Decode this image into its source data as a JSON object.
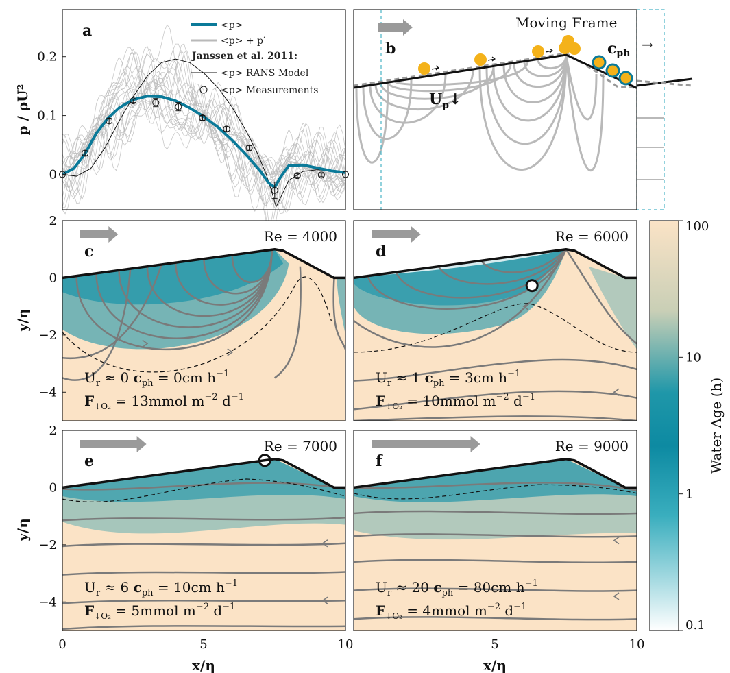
{
  "figure": {
    "colors": {
      "accent": "#0b7a99",
      "gray_line": "#b9b9b9",
      "stream": "#7a7a7a",
      "sand": "#fbe3c6",
      "teal_deep": "#0a8ea7",
      "orange": "#f4b21a"
    }
  },
  "chart_data": [
    {
      "id": "a",
      "type": "line",
      "panel_label": "a",
      "ylabel": "p / ρU²",
      "xlim": [
        0,
        10
      ],
      "ylim": [
        -0.06,
        0.28
      ],
      "yticks": [
        "0",
        "0.1",
        "0.2"
      ],
      "ytick_values": [
        0,
        0.1,
        0.2
      ],
      "legend": {
        "mean": "<p>",
        "fluct": "<p> + p′",
        "group_title": "Janssen et al. 2011:",
        "rans": "<p> RANS Model",
        "meas": "<p> Measurements"
      },
      "series": [
        {
          "name": "<p>",
          "x": [
            0,
            0.4,
            0.8,
            1.2,
            1.6,
            2.0,
            2.5,
            3.0,
            3.5,
            4.0,
            4.5,
            5.0,
            5.5,
            6.0,
            6.5,
            7.0,
            7.3,
            7.5,
            7.7,
            8.0,
            8.5,
            9.0,
            9.5,
            10.0
          ],
          "y": [
            0.0,
            0.01,
            0.035,
            0.07,
            0.095,
            0.113,
            0.127,
            0.133,
            0.132,
            0.125,
            0.113,
            0.098,
            0.08,
            0.058,
            0.033,
            0.005,
            -0.015,
            -0.022,
            -0.005,
            0.015,
            0.016,
            0.011,
            0.006,
            0.003
          ]
        },
        {
          "name": "<p> RANS Model",
          "x": [
            0,
            0.5,
            1.0,
            1.5,
            2.0,
            2.5,
            3.0,
            3.5,
            4.0,
            4.5,
            5.0,
            5.5,
            6.0,
            6.5,
            6.9,
            7.2,
            7.4,
            7.55,
            7.7,
            8.0,
            8.5,
            9.0,
            9.5,
            10.0
          ],
          "y": [
            0.0,
            -0.003,
            0.01,
            0.045,
            0.09,
            0.132,
            0.167,
            0.19,
            0.196,
            0.19,
            0.172,
            0.147,
            0.114,
            0.073,
            0.035,
            0.0,
            -0.03,
            -0.055,
            -0.04,
            -0.01,
            0.005,
            0.008,
            0.006,
            0.004
          ]
        },
        {
          "name": "<p> Measurements",
          "x": [
            0,
            0.8,
            1.65,
            2.5,
            3.3,
            4.1,
            4.95,
            5.8,
            6.6,
            7.5,
            8.3,
            9.15,
            10.0
          ],
          "y": [
            0.0,
            0.036,
            0.091,
            0.125,
            0.122,
            0.115,
            0.096,
            0.077,
            0.045,
            -0.027,
            -0.002,
            -0.001,
            0.0
          ],
          "err": [
            0,
            0.004,
            0.004,
            0.003,
            0.007,
            0.007,
            0.004,
            0.004,
            0.004,
            0.014,
            0.003,
            0.003,
            0
          ]
        }
      ]
    },
    {
      "id": "b",
      "type": "diagram",
      "panel_label": "b",
      "title": "Moving Frame",
      "celerity_label": "c",
      "celerity_sub": "ph",
      "velocity_label": "U",
      "velocity_sub": "p"
    },
    {
      "id": "c",
      "type": "heatmap",
      "panel_label": "c",
      "re": "Re = 4000",
      "ur": "U",
      "ur_sub": "r",
      "ur_val": "≈ 0",
      "cph": "c",
      "cph_sub": "ph",
      "cph_val": "= 0cm h",
      "cph_exp": "−1",
      "flux": "F",
      "flux_sub": "↓O₂",
      "flux_val": "= 13mmol m",
      "flux_exp": "−2",
      "flux_tail": " d",
      "flux_exp2": "−1",
      "arrow_len": 0.1
    },
    {
      "id": "d",
      "type": "heatmap",
      "panel_label": "d",
      "re": "Re = 6000",
      "ur": "U",
      "ur_sub": "r",
      "ur_val": "≈ 1",
      "cph": "c",
      "cph_sub": "ph",
      "cph_val": "= 3cm h",
      "cph_exp": "−1",
      "flux": "F",
      "flux_sub": "↓O₂",
      "flux_val": "= 10mmol m",
      "flux_exp": "−2",
      "flux_tail": " d",
      "flux_exp2": "−1",
      "arrow_len": 0.14
    },
    {
      "id": "e",
      "type": "heatmap",
      "panel_label": "e",
      "re": "Re = 7000",
      "ur": "U",
      "ur_sub": "r",
      "ur_val": "≈ 6",
      "cph": "c",
      "cph_sub": "ph",
      "cph_val": "= 10cm h",
      "cph_exp": "−1",
      "flux": "F",
      "flux_sub": "↓O₂",
      "flux_val": "= 5mmol m",
      "flux_exp": "−2",
      "flux_tail": " d",
      "flux_exp2": "−1",
      "arrow_len": 0.2
    },
    {
      "id": "f",
      "type": "heatmap",
      "panel_label": "f",
      "re": "Re = 9000",
      "ur": "U",
      "ur_sub": "r",
      "ur_val": "≈ 20",
      "cph": "c",
      "cph_sub": "ph",
      "cph_val": "= 80cm h",
      "cph_exp": "−1",
      "flux": "F",
      "flux_sub": "↓O₂",
      "flux_val": "= 4mmol m",
      "flux_exp": "−2",
      "flux_tail": " d",
      "flux_exp2": "−1",
      "arrow_len": 0.35
    }
  ],
  "axes": {
    "xlabel": "x/η",
    "ylabel": "y/η",
    "xticks": [
      "0",
      "5",
      "10"
    ],
    "yticks": [
      "2",
      "0",
      "−2",
      "−4"
    ],
    "ytick_values": [
      2,
      0,
      -2,
      -4
    ],
    "ylim": [
      -5,
      2
    ]
  },
  "colorbar": {
    "label": "Water Age (h)",
    "ticks": [
      "100",
      "10",
      "1",
      "0.1"
    ],
    "tick_values": [
      100,
      10,
      1,
      0.1
    ],
    "scale": "log"
  }
}
